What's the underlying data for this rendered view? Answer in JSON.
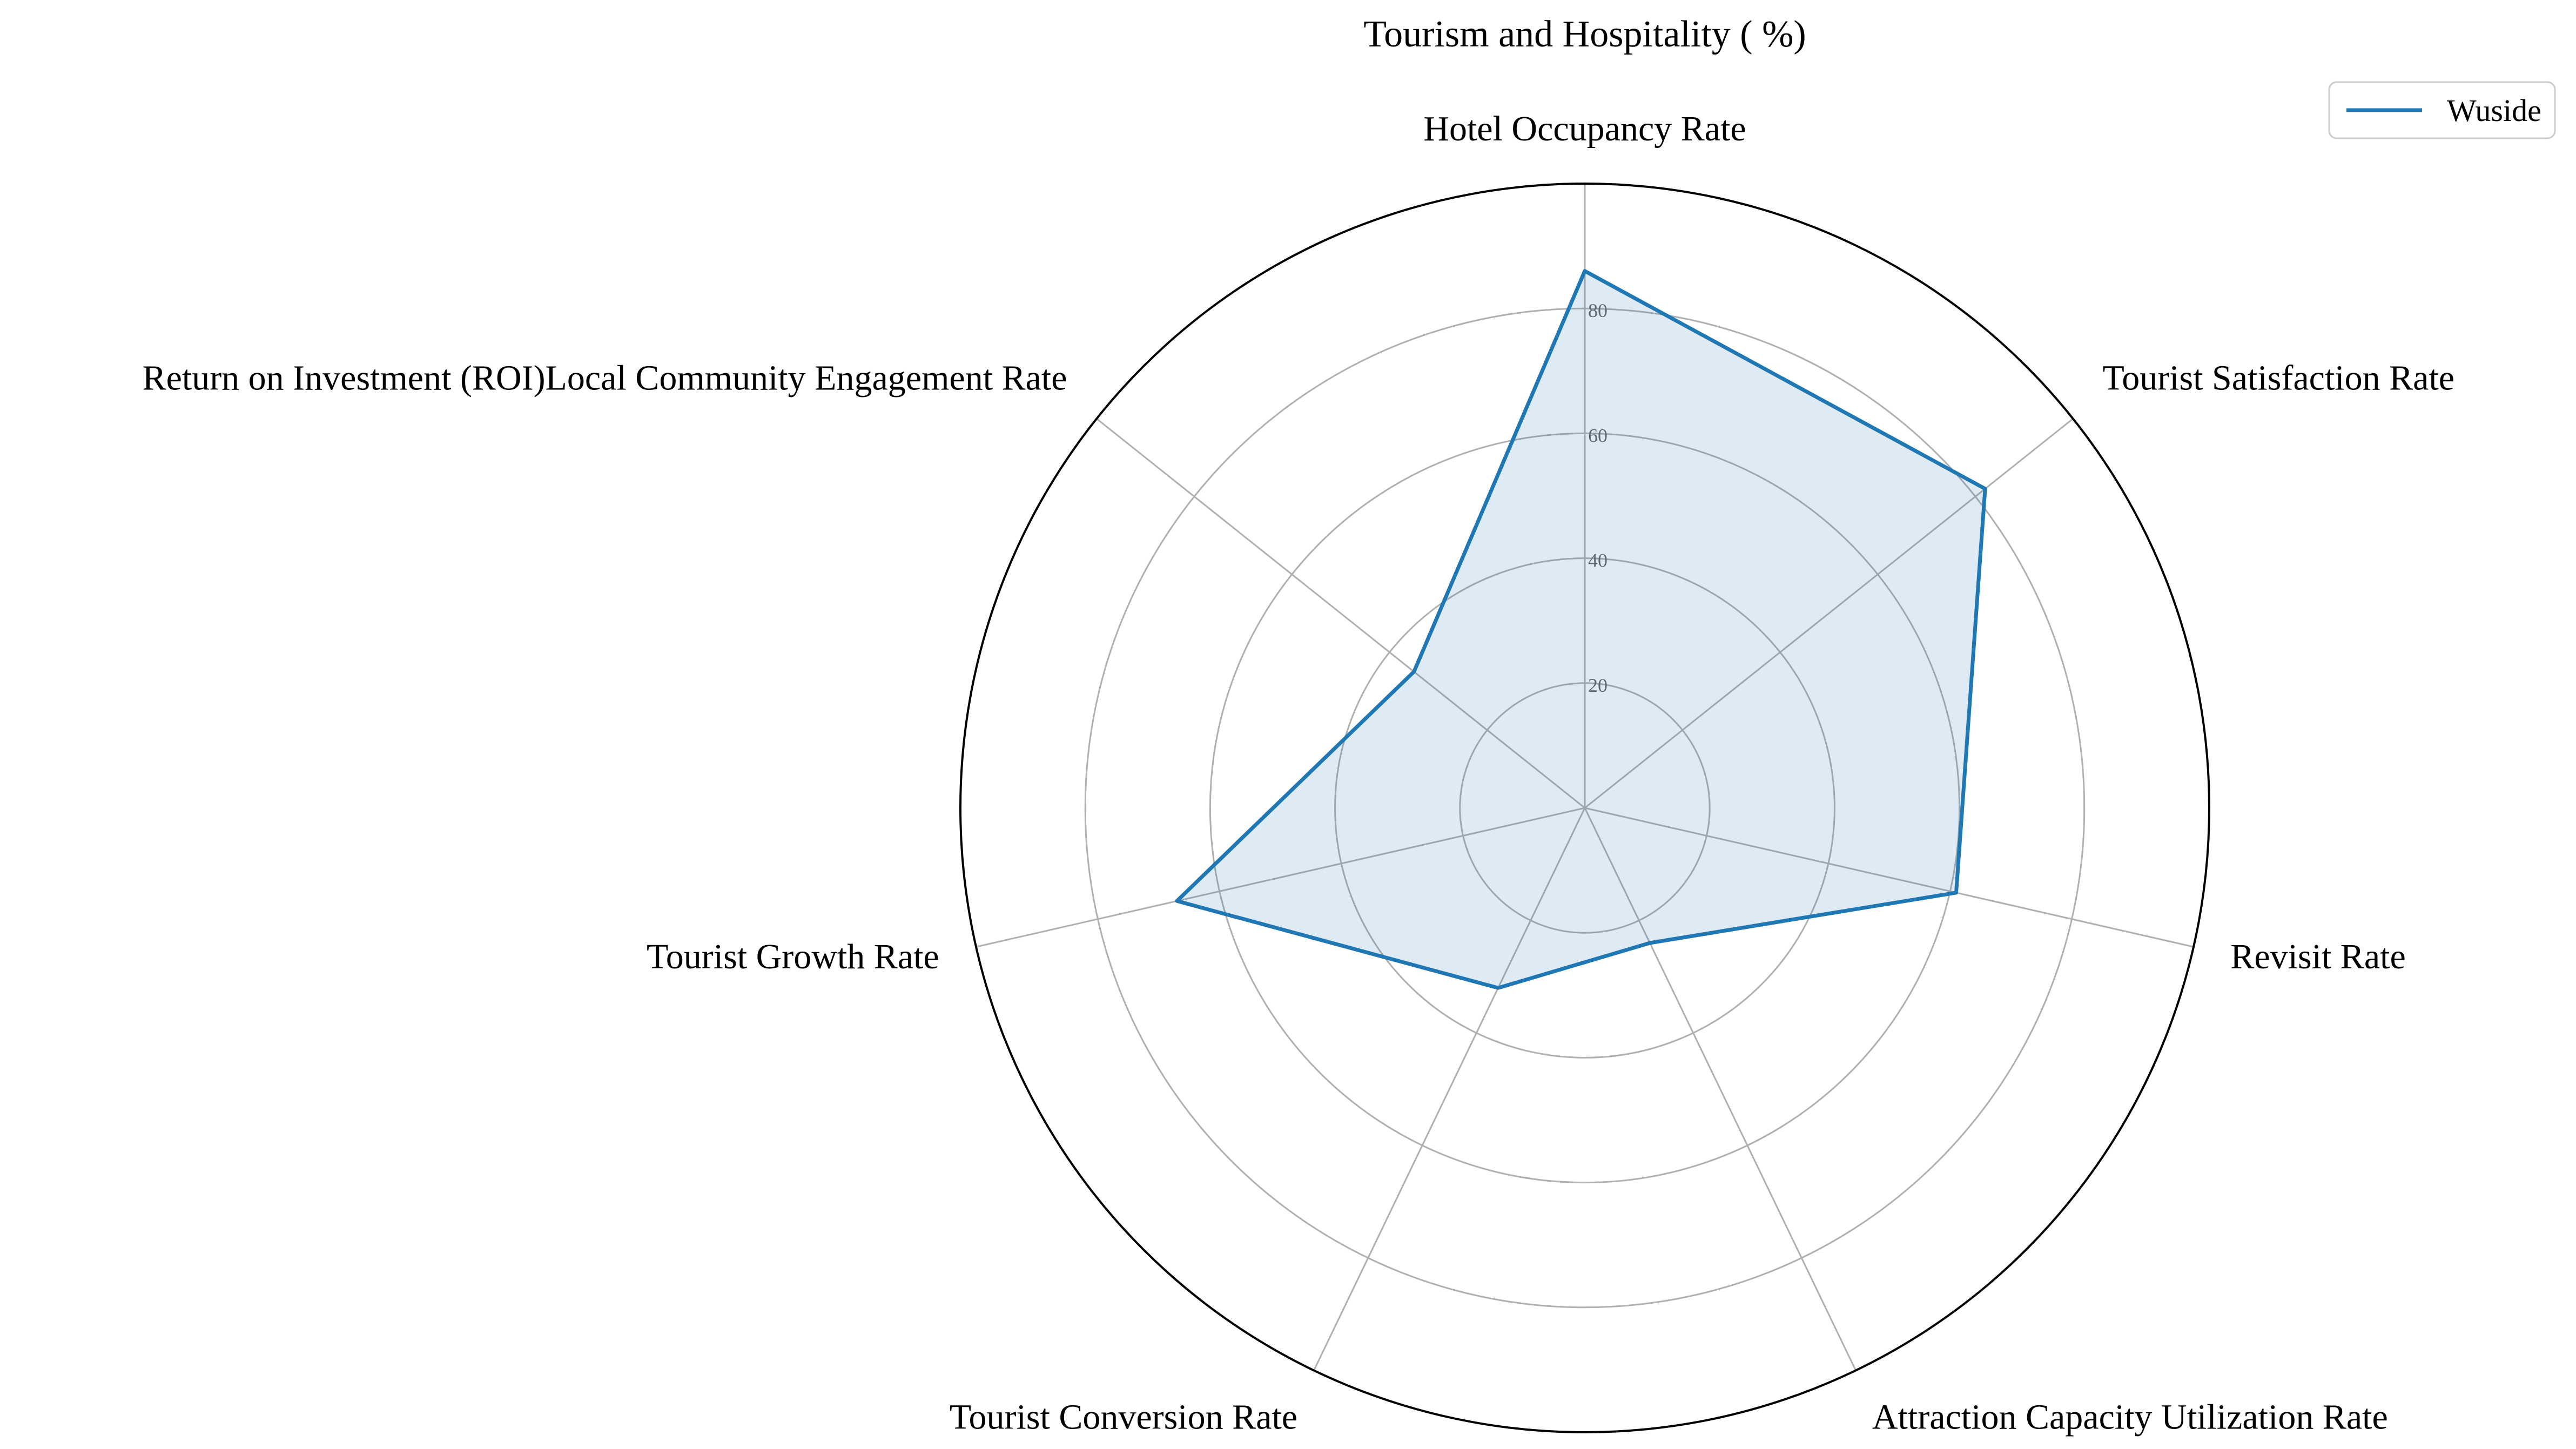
{
  "chart_data": {
    "type": "radar",
    "title": "Tourism and Hospitality ( %)",
    "categories": [
      "Hotel Occupancy Rate",
      "Tourist Satisfaction Rate",
      "Revisit Rate",
      "Attraction Capacity Utilization Rate",
      "Tourist Conversion Rate",
      "Tourist Growth Rate",
      "Return on Investment (ROI)Local Community Engagement Rate"
    ],
    "series": [
      {
        "name": "Wuside",
        "values": [
          86,
          82,
          61,
          24,
          32,
          67,
          35
        ],
        "color": "#1f77b4"
      }
    ],
    "rlim": [
      0,
      100
    ],
    "rticks": [
      "20",
      "40",
      "60",
      "80"
    ],
    "grid": true,
    "legend": "top-right"
  }
}
